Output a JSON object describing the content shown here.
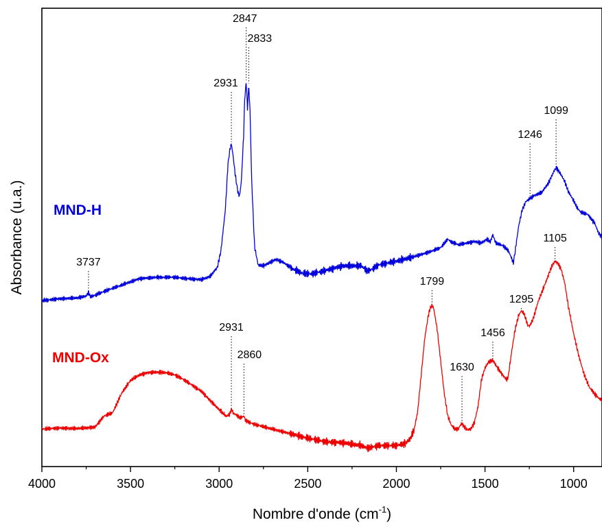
{
  "chart_data": {
    "type": "line",
    "xlabel": "Nombre d'onde (cm",
    "xlabel_sup": "-1",
    "xlabel_end": ")",
    "ylabel": "Absorbance (u.a.)",
    "xlim": [
      4000,
      840
    ],
    "x_reversed": true,
    "y_ticks_shown": false,
    "ylim": [
      0,
      1
    ],
    "grid": false,
    "xticks": [
      {
        "value": 4000,
        "label": "4000"
      },
      {
        "value": 3500,
        "label": "3500"
      },
      {
        "value": 3000,
        "label": "3000"
      },
      {
        "value": 2500,
        "label": "2500"
      },
      {
        "value": 2000,
        "label": "2000"
      },
      {
        "value": 1500,
        "label": "1500"
      },
      {
        "value": 1000,
        "label": "1000"
      }
    ],
    "series": [
      {
        "name": "MND-H",
        "color": "#0000dd",
        "points": [
          [
            4000,
            0.362
          ],
          [
            3900,
            0.366
          ],
          [
            3800,
            0.368
          ],
          [
            3750,
            0.372
          ],
          [
            3737,
            0.38
          ],
          [
            3725,
            0.37
          ],
          [
            3650,
            0.382
          ],
          [
            3550,
            0.396
          ],
          [
            3450,
            0.41
          ],
          [
            3350,
            0.413
          ],
          [
            3250,
            0.413
          ],
          [
            3150,
            0.409
          ],
          [
            3100,
            0.408
          ],
          [
            3050,
            0.415
          ],
          [
            3010,
            0.435
          ],
          [
            2990,
            0.47
          ],
          [
            2965,
            0.56
          ],
          [
            2950,
            0.66
          ],
          [
            2940,
            0.69
          ],
          [
            2931,
            0.705
          ],
          [
            2922,
            0.68
          ],
          [
            2910,
            0.64
          ],
          [
            2895,
            0.6
          ],
          [
            2885,
            0.59
          ],
          [
            2875,
            0.62
          ],
          [
            2862,
            0.72
          ],
          [
            2856,
            0.8
          ],
          [
            2847,
            0.84
          ],
          [
            2840,
            0.78
          ],
          [
            2833,
            0.833
          ],
          [
            2826,
            0.78
          ],
          [
            2816,
            0.62
          ],
          [
            2800,
            0.48
          ],
          [
            2780,
            0.44
          ],
          [
            2750,
            0.438
          ],
          [
            2700,
            0.448
          ],
          [
            2680,
            0.452
          ],
          [
            2640,
            0.446
          ],
          [
            2580,
            0.43
          ],
          [
            2530,
            0.422
          ],
          [
            2480,
            0.42
          ],
          [
            2400,
            0.428
          ],
          [
            2300,
            0.438
          ],
          [
            2200,
            0.438
          ],
          [
            2160,
            0.426
          ],
          [
            2100,
            0.44
          ],
          [
            2000,
            0.448
          ],
          [
            1900,
            0.458
          ],
          [
            1800,
            0.47
          ],
          [
            1750,
            0.478
          ],
          [
            1710,
            0.496
          ],
          [
            1690,
            0.49
          ],
          [
            1650,
            0.484
          ],
          [
            1600,
            0.488
          ],
          [
            1560,
            0.491
          ],
          [
            1520,
            0.488
          ],
          [
            1490,
            0.496
          ],
          [
            1470,
            0.49
          ],
          [
            1456,
            0.506
          ],
          [
            1440,
            0.488
          ],
          [
            1400,
            0.482
          ],
          [
            1370,
            0.472
          ],
          [
            1350,
            0.455
          ],
          [
            1340,
            0.444
          ],
          [
            1330,
            0.47
          ],
          [
            1310,
            0.525
          ],
          [
            1290,
            0.56
          ],
          [
            1270,
            0.578
          ],
          [
            1246,
            0.585
          ],
          [
            1220,
            0.592
          ],
          [
            1180,
            0.598
          ],
          [
            1140,
            0.62
          ],
          [
            1110,
            0.645
          ],
          [
            1099,
            0.652
          ],
          [
            1090,
            0.648
          ],
          [
            1070,
            0.636
          ],
          [
            1050,
            0.622
          ],
          [
            1030,
            0.6
          ],
          [
            1000,
            0.58
          ],
          [
            980,
            0.565
          ],
          [
            960,
            0.555
          ],
          [
            920,
            0.55
          ],
          [
            880,
            0.53
          ],
          [
            860,
            0.51
          ],
          [
            840,
            0.5
          ]
        ]
      },
      {
        "name": "MND-Ox",
        "color": "#ee0000",
        "points": [
          [
            4000,
            0.082
          ],
          [
            3900,
            0.084
          ],
          [
            3800,
            0.083
          ],
          [
            3700,
            0.086
          ],
          [
            3650,
            0.11
          ],
          [
            3600,
            0.118
          ],
          [
            3550,
            0.16
          ],
          [
            3500,
            0.188
          ],
          [
            3450,
            0.2
          ],
          [
            3400,
            0.205
          ],
          [
            3350,
            0.206
          ],
          [
            3300,
            0.205
          ],
          [
            3250,
            0.2
          ],
          [
            3200,
            0.19
          ],
          [
            3100,
            0.164
          ],
          [
            3000,
            0.124
          ],
          [
            2960,
            0.11
          ],
          [
            2940,
            0.114
          ],
          [
            2931,
            0.126
          ],
          [
            2920,
            0.116
          ],
          [
            2900,
            0.112
          ],
          [
            2880,
            0.106
          ],
          [
            2860,
            0.11
          ],
          [
            2850,
            0.1
          ],
          [
            2800,
            0.092
          ],
          [
            2700,
            0.082
          ],
          [
            2600,
            0.072
          ],
          [
            2500,
            0.062
          ],
          [
            2400,
            0.054
          ],
          [
            2300,
            0.052
          ],
          [
            2200,
            0.046
          ],
          [
            2160,
            0.04
          ],
          [
            2100,
            0.046
          ],
          [
            2000,
            0.046
          ],
          [
            1950,
            0.05
          ],
          [
            1920,
            0.062
          ],
          [
            1900,
            0.08
          ],
          [
            1880,
            0.12
          ],
          [
            1860,
            0.2
          ],
          [
            1840,
            0.28
          ],
          [
            1820,
            0.33
          ],
          [
            1810,
            0.345
          ],
          [
            1799,
            0.352
          ],
          [
            1790,
            0.346
          ],
          [
            1770,
            0.3
          ],
          [
            1750,
            0.23
          ],
          [
            1730,
            0.16
          ],
          [
            1710,
            0.11
          ],
          [
            1690,
            0.09
          ],
          [
            1670,
            0.082
          ],
          [
            1650,
            0.082
          ],
          [
            1640,
            0.09
          ],
          [
            1630,
            0.094
          ],
          [
            1620,
            0.088
          ],
          [
            1600,
            0.08
          ],
          [
            1580,
            0.082
          ],
          [
            1560,
            0.096
          ],
          [
            1540,
            0.13
          ],
          [
            1520,
            0.19
          ],
          [
            1500,
            0.215
          ],
          [
            1480,
            0.228
          ],
          [
            1456,
            0.232
          ],
          [
            1440,
            0.222
          ],
          [
            1420,
            0.21
          ],
          [
            1400,
            0.2
          ],
          [
            1380,
            0.19
          ],
          [
            1370,
            0.194
          ],
          [
            1350,
            0.25
          ],
          [
            1330,
            0.3
          ],
          [
            1310,
            0.33
          ],
          [
            1295,
            0.34
          ],
          [
            1280,
            0.334
          ],
          [
            1260,
            0.31
          ],
          [
            1250,
            0.306
          ],
          [
            1230,
            0.32
          ],
          [
            1200,
            0.36
          ],
          [
            1170,
            0.39
          ],
          [
            1140,
            0.42
          ],
          [
            1120,
            0.44
          ],
          [
            1105,
            0.448
          ],
          [
            1090,
            0.444
          ],
          [
            1070,
            0.43
          ],
          [
            1050,
            0.4
          ],
          [
            1030,
            0.35
          ],
          [
            1000,
            0.29
          ],
          [
            970,
            0.24
          ],
          [
            940,
            0.2
          ],
          [
            910,
            0.172
          ],
          [
            880,
            0.158
          ],
          [
            860,
            0.15
          ],
          [
            840,
            0.145
          ]
        ]
      }
    ],
    "annotations": [
      {
        "series": "MND-H",
        "x": 3737,
        "label": "3737"
      },
      {
        "series": "MND-H",
        "x": 2931,
        "label": "2931"
      },
      {
        "series": "MND-H",
        "x": 2847,
        "label": "2847"
      },
      {
        "series": "MND-H",
        "x": 2833,
        "label": "2833"
      },
      {
        "series": "MND-H",
        "x": 1246,
        "label": "1246"
      },
      {
        "series": "MND-H",
        "x": 1099,
        "label": "1099"
      },
      {
        "series": "MND-Ox",
        "x": 2931,
        "label": "2931"
      },
      {
        "series": "MND-Ox",
        "x": 2860,
        "label": "2860"
      },
      {
        "series": "MND-Ox",
        "x": 1799,
        "label": "1799"
      },
      {
        "series": "MND-Ox",
        "x": 1630,
        "label": "1630"
      },
      {
        "series": "MND-Ox",
        "x": 1456,
        "label": "1456"
      },
      {
        "series": "MND-Ox",
        "x": 1295,
        "label": "1295"
      },
      {
        "series": "MND-Ox",
        "x": 1105,
        "label": "1105"
      }
    ]
  }
}
